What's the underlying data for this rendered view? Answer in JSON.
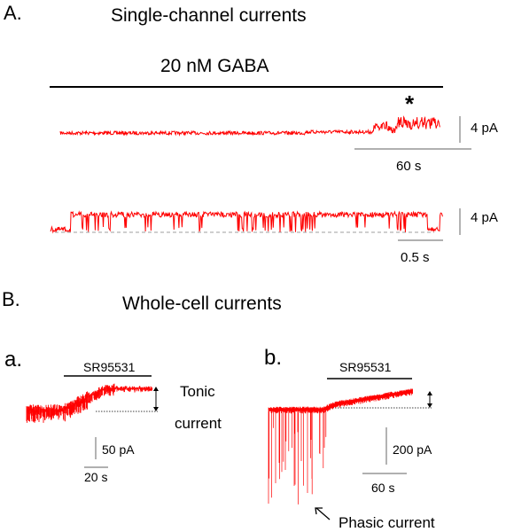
{
  "panel_a": {
    "letter": "A.",
    "title": "Single-channel  currents",
    "drug_label": "20 nM GABA",
    "asterisk": "*",
    "scale_top": {
      "amplitude": "4 pA",
      "time": "60 s"
    },
    "scale_bottom": {
      "amplitude": "4 pA",
      "time": "0.5 s"
    }
  },
  "panel_b": {
    "letter": "B.",
    "title": "Whole-cell  currents",
    "sub_a": {
      "letter": "a.",
      "drug_label": "SR95531",
      "tonic_label_line1": "Tonic",
      "tonic_label_line2": "current",
      "scale_amplitude": "50 pA",
      "scale_time": "20 s"
    },
    "sub_b": {
      "letter": "b.",
      "drug_label": "SR95531",
      "scale_amplitude": "200 pA",
      "scale_time": "60 s",
      "phasic_label": "Phasic current"
    }
  },
  "colors": {
    "trace": "#ff0000",
    "ink": "#000000",
    "scale_bar": "#808080"
  }
}
